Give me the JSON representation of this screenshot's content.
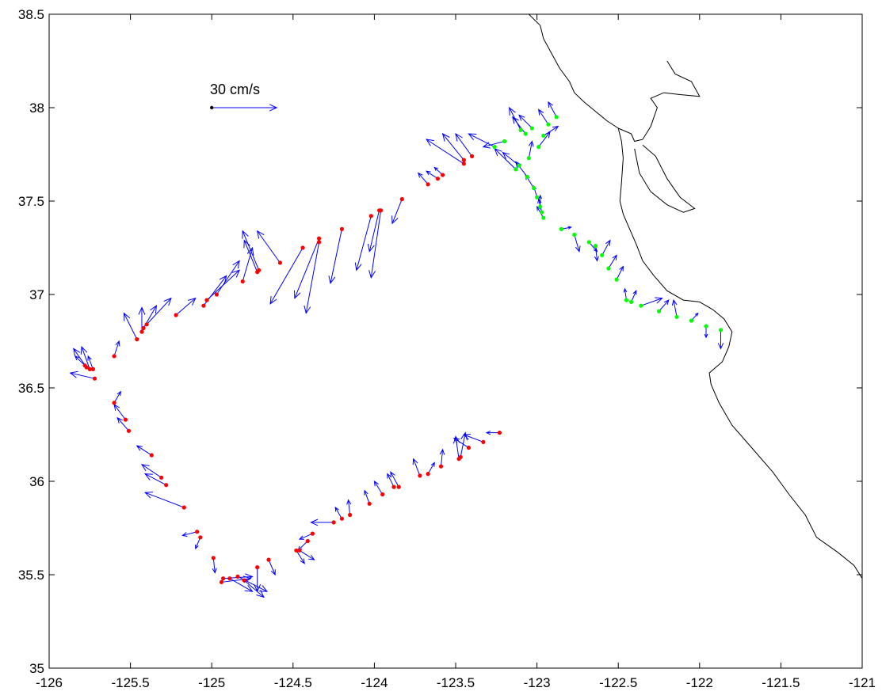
{
  "chart_data": {
    "type": "quiver",
    "title": "",
    "xlabel": "",
    "ylabel": "",
    "xlim": [
      -126,
      -121
    ],
    "ylim": [
      35,
      38.5
    ],
    "xticks": [
      -126,
      -125.5,
      -125,
      -124.5,
      -124,
      -123.5,
      -123,
      -122.5,
      -122,
      -121.5,
      -121
    ],
    "yticks": [
      35,
      35.5,
      36,
      36.5,
      37,
      37.5,
      38,
      38.5
    ],
    "xtick_labels": [
      "-126",
      "-125.5",
      "-125",
      "-124.5",
      "-124",
      "-123.5",
      "-123",
      "-122.5",
      "-122",
      "-121.5",
      "-121"
    ],
    "ytick_labels": [
      "35",
      "35.5",
      "36",
      "36.5",
      "37",
      "37.5",
      "38",
      "38.5"
    ],
    "grid": false,
    "colors": {
      "red_stations": "#ff0000",
      "green_stations": "#00ff00",
      "vectors": "#0000ff",
      "coastline": "#000000",
      "reference": "#0000ff"
    },
    "reference_vector": {
      "label": "30 cm/s",
      "x": -125.0,
      "y": 38.0,
      "u": 30,
      "v": 0
    },
    "vector_scale_deg_per_cms": 0.0133,
    "stations_red": [
      [
        -125.75,
        36.6,
        -0.05,
        0.12
      ],
      [
        -125.77,
        36.61,
        -0.08,
        0.1
      ],
      [
        -125.73,
        36.6,
        -0.03,
        0.07
      ],
      [
        -125.78,
        36.62,
        -0.06,
        0.05
      ],
      [
        -125.72,
        36.55,
        -0.15,
        0.03
      ],
      [
        -125.6,
        36.67,
        0.03,
        0.08
      ],
      [
        -125.46,
        36.76,
        -0.08,
        0.14
      ],
      [
        -125.43,
        36.8,
        0.0,
        0.13
      ],
      [
        -125.42,
        36.82,
        0.08,
        0.12
      ],
      [
        -125.4,
        36.84,
        0.15,
        0.14
      ],
      [
        -125.22,
        36.89,
        0.12,
        0.09
      ],
      [
        -125.05,
        36.94,
        0.14,
        0.16
      ],
      [
        -125.03,
        36.97,
        0.2,
        0.16
      ],
      [
        -124.97,
        37.0,
        0.14,
        0.18
      ],
      [
        -124.81,
        37.07,
        0.06,
        0.18
      ],
      [
        -124.72,
        37.12,
        -0.08,
        0.17
      ],
      [
        -124.71,
        37.13,
        -0.1,
        0.21
      ],
      [
        -124.58,
        37.17,
        -0.14,
        0.17
      ],
      [
        -124.44,
        37.25,
        -0.2,
        -0.3
      ],
      [
        -124.34,
        37.28,
        -0.08,
        -0.38
      ],
      [
        -124.34,
        37.3,
        -0.15,
        -0.32
      ],
      [
        -124.2,
        37.35,
        -0.07,
        -0.29
      ],
      [
        -124.02,
        37.42,
        -0.09,
        -0.29
      ],
      [
        -123.97,
        37.45,
        -0.06,
        -0.22
      ],
      [
        -123.96,
        37.45,
        -0.06,
        -0.36
      ],
      [
        -123.83,
        37.51,
        -0.06,
        -0.13
      ],
      [
        -123.67,
        37.59,
        -0.06,
        0.06
      ],
      [
        -123.61,
        37.62,
        -0.07,
        0.04
      ],
      [
        -123.58,
        37.64,
        -0.05,
        0.04
      ],
      [
        -123.45,
        37.7,
        -0.23,
        0.13
      ],
      [
        -123.45,
        37.72,
        -0.13,
        0.14
      ],
      [
        -123.4,
        37.74,
        -0.1,
        0.12
      ],
      [
        -125.6,
        36.42,
        0.04,
        0.06
      ],
      [
        -125.53,
        36.33,
        -0.07,
        0.08
      ],
      [
        -125.51,
        36.27,
        -0.07,
        0.07
      ],
      [
        -125.37,
        36.14,
        -0.09,
        0.05
      ],
      [
        -125.31,
        36.02,
        -0.12,
        0.07
      ],
      [
        -125.28,
        35.98,
        -0.13,
        0.06
      ],
      [
        -125.17,
        35.86,
        -0.24,
        0.08
      ],
      [
        -125.09,
        35.73,
        -0.09,
        -0.02
      ],
      [
        -125.07,
        35.7,
        -0.03,
        -0.06
      ],
      [
        -124.99,
        35.59,
        0.01,
        -0.08
      ],
      [
        -124.94,
        35.46,
        0.18,
        0.02
      ],
      [
        -124.93,
        35.48,
        0.18,
        0.01
      ],
      [
        -124.89,
        35.48,
        0.14,
        -0.07
      ],
      [
        -124.84,
        35.49,
        0.18,
        -0.08
      ],
      [
        -124.8,
        35.47,
        0.12,
        -0.09
      ],
      [
        -124.72,
        35.54,
        0.0,
        -0.13
      ],
      [
        -124.65,
        35.58,
        0.04,
        -0.08
      ],
      [
        -124.48,
        35.63,
        0.05,
        -0.07
      ],
      [
        -124.46,
        35.63,
        0.09,
        -0.05
      ],
      [
        -124.41,
        35.68,
        -0.06,
        -0.05
      ],
      [
        -124.38,
        35.72,
        -0.08,
        -0.03
      ],
      [
        -124.25,
        35.78,
        -0.14,
        0.0
      ],
      [
        -124.2,
        35.8,
        -0.04,
        0.06
      ],
      [
        -124.15,
        35.82,
        -0.01,
        0.08
      ],
      [
        -124.03,
        35.88,
        -0.03,
        0.07
      ],
      [
        -123.95,
        35.93,
        -0.05,
        0.07
      ],
      [
        -123.88,
        35.97,
        -0.04,
        0.07
      ],
      [
        -123.85,
        35.97,
        -0.05,
        0.08
      ],
      [
        -123.72,
        36.03,
        -0.04,
        0.09
      ],
      [
        -123.67,
        36.04,
        0.04,
        0.06
      ],
      [
        -123.59,
        36.08,
        0.01,
        0.09
      ],
      [
        -123.48,
        36.12,
        -0.02,
        0.12
      ],
      [
        -123.47,
        36.13,
        0.03,
        0.13
      ],
      [
        -123.42,
        36.18,
        -0.09,
        0.05
      ],
      [
        -123.33,
        36.21,
        -0.12,
        0.04
      ],
      [
        -123.23,
        36.26,
        -0.08,
        0.0
      ]
    ],
    "stations_green": [
      [
        -122.88,
        37.95,
        -0.05,
        0.08
      ],
      [
        -122.93,
        37.91,
        -0.06,
        0.08
      ],
      [
        -122.96,
        37.85,
        0.09,
        0.05
      ],
      [
        -122.99,
        37.79,
        0.07,
        0.08
      ],
      [
        -123.03,
        37.89,
        -0.08,
        0.07
      ],
      [
        -123.07,
        37.86,
        -0.08,
        0.09
      ],
      [
        -123.1,
        37.88,
        -0.07,
        0.12
      ],
      [
        -123.2,
        37.82,
        -0.13,
        -0.03
      ],
      [
        -123.26,
        37.79,
        -0.16,
        0.07
      ],
      [
        -123.05,
        37.73,
        0.02,
        0.09
      ],
      [
        -123.11,
        37.69,
        -0.1,
        0.07
      ],
      [
        -123.13,
        37.67,
        -0.13,
        0.11
      ],
      [
        -123.06,
        37.63,
        -0.07,
        0.08
      ],
      [
        -123.02,
        37.57,
        -0.05,
        0.07
      ],
      [
        -123.0,
        37.52,
        -0.02,
        0.06
      ],
      [
        -122.98,
        37.47,
        0.0,
        0.06
      ],
      [
        -122.97,
        37.44,
        -0.02,
        0.07
      ],
      [
        -122.96,
        37.41,
        -0.04,
        0.06
      ],
      [
        -122.85,
        37.35,
        0.06,
        0.01
      ],
      [
        -122.77,
        37.32,
        0.03,
        -0.09
      ],
      [
        -122.68,
        37.28,
        0.05,
        -0.05
      ],
      [
        -122.64,
        37.26,
        0.01,
        -0.08
      ],
      [
        -122.6,
        37.21,
        0.05,
        0.08
      ],
      [
        -122.56,
        37.14,
        0.05,
        0.07
      ],
      [
        -122.51,
        37.08,
        0.04,
        0.07
      ],
      [
        -122.45,
        36.97,
        -0.01,
        0.06
      ],
      [
        -122.42,
        36.96,
        0.03,
        0.06
      ],
      [
        -122.36,
        36.94,
        0.13,
        0.04
      ],
      [
        -122.25,
        36.91,
        0.06,
        0.06
      ],
      [
        -122.14,
        36.88,
        -0.02,
        0.09
      ],
      [
        -122.05,
        36.86,
        0.04,
        0.04
      ],
      [
        -121.96,
        36.83,
        0.0,
        -0.06
      ],
      [
        -121.87,
        36.81,
        0.0,
        -0.1
      ]
    ],
    "coastline": [
      [
        [
          -123.05,
          38.5
        ],
        [
          -122.98,
          38.44
        ],
        [
          -122.96,
          38.37
        ],
        [
          -122.91,
          38.29
        ],
        [
          -122.86,
          38.21
        ],
        [
          -122.8,
          38.14
        ],
        [
          -122.77,
          38.08
        ],
        [
          -122.71,
          38.03
        ],
        [
          -122.64,
          37.98
        ],
        [
          -122.57,
          37.93
        ],
        [
          -122.5,
          37.89
        ],
        [
          -122.48,
          37.82
        ],
        [
          -122.47,
          37.73
        ],
        [
          -122.48,
          37.6
        ],
        [
          -122.49,
          37.5
        ],
        [
          -122.47,
          37.43
        ],
        [
          -122.43,
          37.35
        ],
        [
          -122.39,
          37.27
        ],
        [
          -122.35,
          37.18
        ],
        [
          -122.28,
          37.1
        ],
        [
          -122.2,
          37.02
        ],
        [
          -122.1,
          36.97
        ],
        [
          -122.0,
          36.96
        ],
        [
          -121.92,
          36.92
        ],
        [
          -121.85,
          36.87
        ],
        [
          -121.8,
          36.8
        ],
        [
          -121.82,
          36.72
        ],
        [
          -121.86,
          36.64
        ],
        [
          -121.94,
          36.58
        ],
        [
          -121.93,
          36.52
        ],
        [
          -121.88,
          36.42
        ],
        [
          -121.8,
          36.3
        ],
        [
          -121.68,
          36.18
        ],
        [
          -121.55,
          36.05
        ],
        [
          -121.45,
          35.93
        ],
        [
          -121.35,
          35.82
        ],
        [
          -121.28,
          35.7
        ],
        [
          -121.15,
          35.62
        ],
        [
          -121.05,
          35.55
        ],
        [
          -121.0,
          35.48
        ]
      ],
      [
        [
          -122.5,
          37.89
        ],
        [
          -122.42,
          37.86
        ],
        [
          -122.4,
          37.82
        ],
        [
          -122.35,
          37.83
        ],
        [
          -122.3,
          37.9
        ],
        [
          -122.26,
          38.0
        ],
        [
          -122.3,
          38.05
        ],
        [
          -122.22,
          38.08
        ],
        [
          -122.12,
          38.07
        ],
        [
          -122.0,
          38.06
        ],
        [
          -122.05,
          38.14
        ],
        [
          -122.15,
          38.18
        ],
        [
          -122.2,
          38.25
        ]
      ],
      [
        [
          -122.4,
          37.78
        ],
        [
          -122.37,
          37.65
        ],
        [
          -122.3,
          37.55
        ],
        [
          -122.2,
          37.48
        ],
        [
          -122.1,
          37.44
        ],
        [
          -122.03,
          37.46
        ],
        [
          -122.12,
          37.52
        ],
        [
          -122.2,
          37.62
        ],
        [
          -122.27,
          37.74
        ],
        [
          -122.35,
          37.8
        ]
      ]
    ]
  }
}
